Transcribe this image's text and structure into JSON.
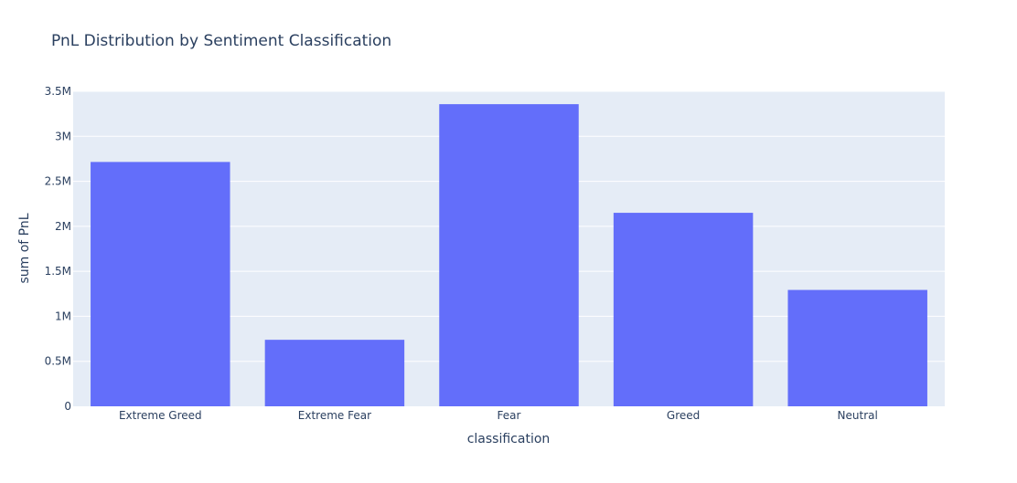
{
  "chart_data": {
    "type": "bar",
    "title": "PnL Distribution by Sentiment Classification",
    "xlabel": "classification",
    "ylabel": "sum of PnL",
    "categories": [
      "Extreme Greed",
      "Extreme Fear",
      "Fear",
      "Greed",
      "Neutral"
    ],
    "values": [
      2715000,
      739000,
      3357000,
      2150000,
      1293000
    ],
    "ylim": [
      0,
      3500000
    ],
    "yticks": [
      0,
      500000,
      1000000,
      1500000,
      2000000,
      2500000,
      3000000,
      3500000
    ],
    "ytick_labels": [
      "0",
      "0.5M",
      "1M",
      "1.5M",
      "2M",
      "2.5M",
      "3M",
      "3.5M"
    ],
    "grid": true,
    "colors": {
      "bar": "#636efa",
      "plot_bg": "#e5ecf6",
      "grid": "#ffffff",
      "text": "#2a3f5f"
    }
  }
}
